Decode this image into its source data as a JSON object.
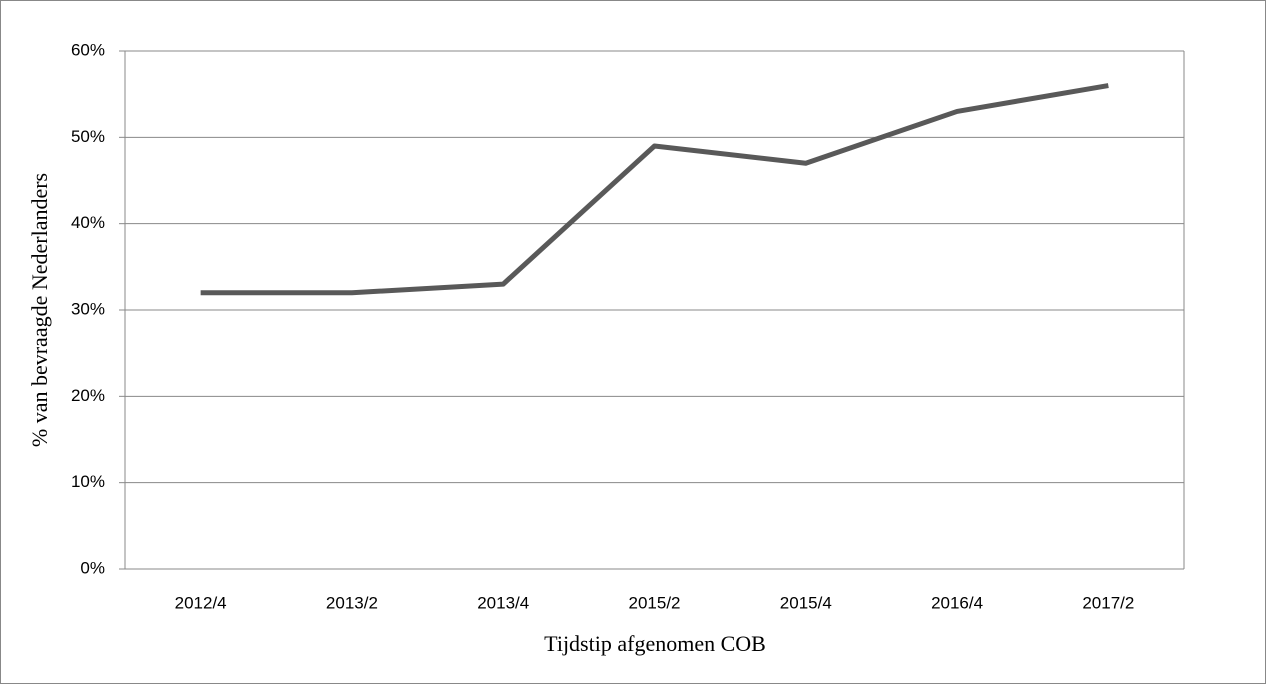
{
  "chart_data": {
    "type": "line",
    "x_label": "Tijdstip afgenomen COB",
    "y_label": "% van bevraagde Nederlanders",
    "categories": [
      "2012/4",
      "2013/2",
      "2013/4",
      "2015/2",
      "2015/4",
      "2016/4",
      "2017/2"
    ],
    "values": [
      32,
      32,
      33,
      49,
      47,
      53,
      56
    ],
    "color": "#595959",
    "ylim": [
      0,
      60
    ],
    "yticks": [
      {
        "value": 0,
        "label": "0%"
      },
      {
        "value": 10,
        "label": "10%"
      },
      {
        "value": 20,
        "label": "20%"
      },
      {
        "value": 30,
        "label": "30%"
      },
      {
        "value": 40,
        "label": "40%"
      },
      {
        "value": 50,
        "label": "50%"
      },
      {
        "value": 60,
        "label": "60%"
      }
    ],
    "grid": true
  }
}
